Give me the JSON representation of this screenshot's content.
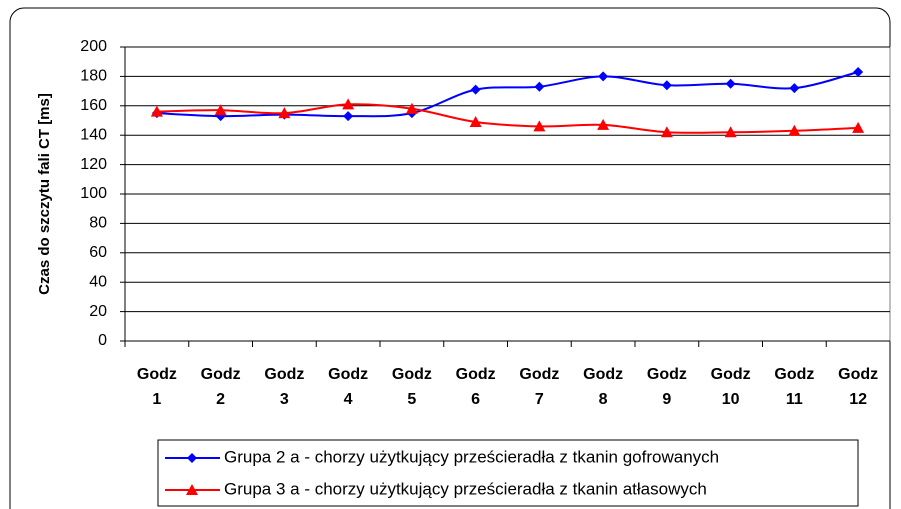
{
  "chart_data": {
    "type": "line",
    "y_label": "Czas do szczytu fali CT [ms]",
    "categories": [
      "Godz 1",
      "Godz 2",
      "Godz 3",
      "Godz 4",
      "Godz 5",
      "Godz 6",
      "Godz 7",
      "Godz 8",
      "Godz 9",
      "Godz 10",
      "Godz 11",
      "Godz 12"
    ],
    "series": [
      {
        "name": "Grupa 2 a - chorzy użytkujący prześcieradła z tkanin gofrowanych",
        "color": "#0000ff",
        "marker": "diamond",
        "values": [
          155,
          153,
          154,
          153,
          155,
          171,
          173,
          180,
          174,
          175,
          172,
          183
        ]
      },
      {
        "name": "Grupa 3 a - chorzy użytkujący prześcieradła z tkanin atłasowych",
        "color": "#ff0000",
        "marker": "triangle",
        "values": [
          156,
          157,
          155,
          161,
          158,
          149,
          146,
          147,
          142,
          142,
          143,
          145
        ]
      }
    ],
    "ylim": [
      0,
      200
    ],
    "yticks": [
      0,
      20,
      40,
      60,
      80,
      100,
      120,
      140,
      160,
      180,
      200
    ],
    "grid": true,
    "legend": "bottom"
  }
}
